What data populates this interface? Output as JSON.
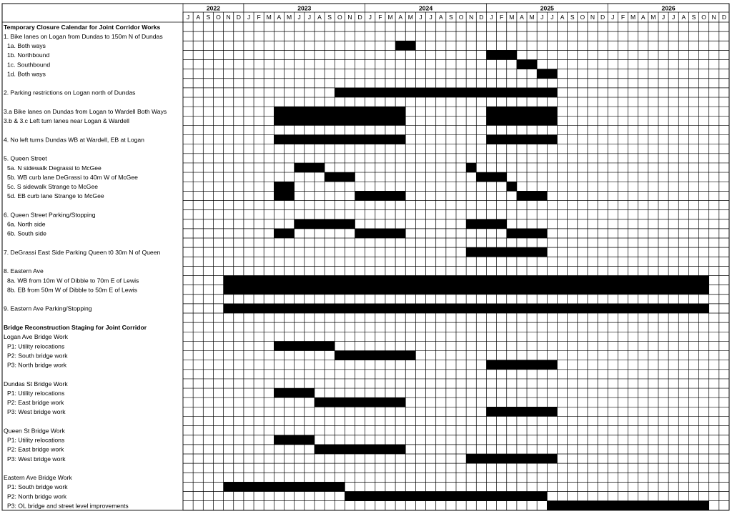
{
  "calendar": {
    "years": [
      {
        "label": "2022",
        "months": [
          "J",
          "A",
          "S",
          "O",
          "N",
          "D"
        ]
      },
      {
        "label": "2023",
        "months": [
          "J",
          "F",
          "M",
          "A",
          "M",
          "J",
          "J",
          "A",
          "S",
          "O",
          "N",
          "D"
        ]
      },
      {
        "label": "2024",
        "months": [
          "J",
          "F",
          "M",
          "A",
          "M",
          "J",
          "J",
          "A",
          "S",
          "O",
          "N",
          "D"
        ]
      },
      {
        "label": "2025",
        "months": [
          "J",
          "F",
          "M",
          "A",
          "M",
          "J",
          "J",
          "A",
          "S",
          "O",
          "N",
          "D"
        ]
      },
      {
        "label": "2026",
        "months": [
          "J",
          "F",
          "M",
          "A",
          "M",
          "J",
          "J",
          "A",
          "S",
          "O",
          "N",
          "D"
        ]
      }
    ],
    "rows": [
      {
        "label": "Temporary Closure Calendar for Joint Corridor Works",
        "bold": true,
        "bars": []
      },
      {
        "label": "1. Bike lanes on Logan from Dundas to 150m N of Dundas",
        "bars": []
      },
      {
        "label": "1a. Both ways",
        "indent": true,
        "bars": [
          [
            21,
            22
          ]
        ]
      },
      {
        "label": "1b. Northbound",
        "indent": true,
        "bars": [
          [
            30,
            32
          ]
        ]
      },
      {
        "label": "1c. Southbound",
        "indent": true,
        "bars": [
          [
            33,
            34
          ]
        ]
      },
      {
        "label": "1d. Both ways",
        "indent": true,
        "bars": [
          [
            35,
            36
          ]
        ]
      },
      {
        "label": null,
        "bars": []
      },
      {
        "label": "2. Parking restrictions on Logan north of Dundas",
        "bars": [
          [
            15,
            36
          ]
        ]
      },
      {
        "label": null,
        "bars": []
      },
      {
        "label": "3.a Bike lanes on Dundas from Logan to Wardell Both Ways",
        "bars": [
          [
            9,
            21
          ],
          [
            30,
            36
          ]
        ]
      },
      {
        "label": "3.b & 3.c Left turn lanes near Logan & Wardell",
        "bars": [
          [
            9,
            21
          ],
          [
            30,
            36
          ]
        ]
      },
      {
        "label": null,
        "bars": []
      },
      {
        "label": "4. No left turns Dundas WB at Wardell, EB at Logan",
        "bars": [
          [
            9,
            21
          ],
          [
            30,
            36
          ]
        ]
      },
      {
        "label": null,
        "bars": []
      },
      {
        "label": "5. Queen Street",
        "bars": []
      },
      {
        "label": "5a. N sidewalk Degrassi to McGee",
        "indent": true,
        "bars": [
          [
            11,
            13
          ],
          [
            28,
            28
          ]
        ]
      },
      {
        "label": "5b. WB curb lane DeGrassi to 40m W of McGee",
        "indent": true,
        "bars": [
          [
            14,
            16
          ],
          [
            29,
            31
          ]
        ]
      },
      {
        "label": "5c. S sidewalk Strange to McGee",
        "indent": true,
        "bars": [
          [
            9,
            10
          ],
          [
            32,
            32
          ]
        ]
      },
      {
        "label": "5d. EB curb lane Strange to McGee",
        "indent": true,
        "bars": [
          [
            9,
            10
          ],
          [
            17,
            21
          ],
          [
            33,
            35
          ]
        ]
      },
      {
        "label": null,
        "bars": []
      },
      {
        "label": "6. Queen Street Parking/Stopping",
        "bars": []
      },
      {
        "label": "6a. North side",
        "indent": true,
        "bars": [
          [
            11,
            16
          ],
          [
            28,
            31
          ]
        ]
      },
      {
        "label": "6b. South side",
        "indent": true,
        "bars": [
          [
            9,
            10
          ],
          [
            17,
            21
          ],
          [
            32,
            35
          ]
        ]
      },
      {
        "label": null,
        "bars": []
      },
      {
        "label": "7. DeGrassi East Side Parking Queen t0 30m N of Queen",
        "bars": [
          [
            28,
            35
          ]
        ]
      },
      {
        "label": null,
        "bars": []
      },
      {
        "label": "8. Eastern Ave",
        "bars": []
      },
      {
        "label": "8a. WB from 10m W of Dibble to 70m E of Lewis",
        "indent": true,
        "bars": [
          [
            4,
            51
          ]
        ]
      },
      {
        "label": "8b. EB from 50m W of Dibble to 50m E of Lewis",
        "indent": true,
        "bars": [
          [
            4,
            51
          ]
        ]
      },
      {
        "label": null,
        "bars": []
      },
      {
        "label": "9. Eastern Ave Parking/Stopping",
        "bars": [
          [
            4,
            51
          ]
        ]
      },
      {
        "label": null,
        "bars": []
      },
      {
        "label": "Bridge Reconstruction Staging for Joint Corridor",
        "bold": true,
        "bars": []
      },
      {
        "label": "Logan Ave Bridge Work",
        "bars": []
      },
      {
        "label": "P1: Utility relocations",
        "indent": true,
        "bars": [
          [
            9,
            14
          ]
        ]
      },
      {
        "label": "P2: South bridge work",
        "indent": true,
        "bars": [
          [
            15,
            22
          ]
        ]
      },
      {
        "label": "P3: North bridge work",
        "indent": true,
        "bars": [
          [
            30,
            36
          ]
        ]
      },
      {
        "label": null,
        "bars": []
      },
      {
        "label": "Dundas St Bridge Work",
        "bars": []
      },
      {
        "label": "P1: Utility relocations",
        "indent": true,
        "bars": [
          [
            9,
            12
          ]
        ]
      },
      {
        "label": "P2: East  bridge work",
        "indent": true,
        "bars": [
          [
            13,
            21
          ]
        ]
      },
      {
        "label": "P3: West bridge work",
        "indent": true,
        "bars": [
          [
            30,
            36
          ]
        ]
      },
      {
        "label": null,
        "bars": []
      },
      {
        "label": "Queen St Bridge Work",
        "bars": []
      },
      {
        "label": "P1: Utility relocations",
        "indent": true,
        "bars": [
          [
            9,
            12
          ]
        ]
      },
      {
        "label": "P2: East bridge work",
        "indent": true,
        "bars": [
          [
            13,
            21
          ]
        ]
      },
      {
        "label": "P3: West bridge work",
        "indent": true,
        "bars": [
          [
            28,
            36
          ]
        ]
      },
      {
        "label": null,
        "bars": []
      },
      {
        "label": "Eastern Ave Bridge Work",
        "bars": []
      },
      {
        "label": "P1: South bridge work",
        "indent": true,
        "bars": [
          [
            4,
            15
          ]
        ]
      },
      {
        "label": "P2: North bridge work",
        "indent": true,
        "bars": [
          [
            16,
            35
          ]
        ]
      },
      {
        "label": "P3: OL bridge and street level improvements",
        "indent": true,
        "bars": [
          [
            36,
            51
          ]
        ]
      }
    ]
  }
}
